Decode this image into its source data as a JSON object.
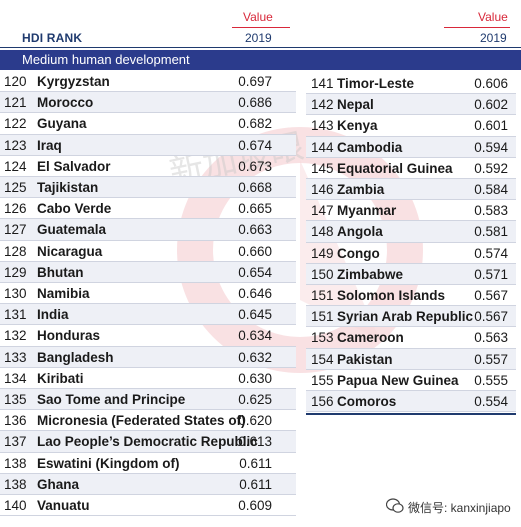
{
  "header": {
    "hdi_rank_label": "HDI RANK",
    "left_value_label": "Value",
    "left_year": "2019",
    "right_value_label": "Value",
    "right_year": "2019"
  },
  "section_title": "Medium human development",
  "left_rows": [
    {
      "rank": "120",
      "name": "Kyrgyzstan",
      "value": "0.697"
    },
    {
      "rank": "121",
      "name": "Morocco",
      "value": "0.686"
    },
    {
      "rank": "122",
      "name": "Guyana",
      "value": "0.682"
    },
    {
      "rank": "123",
      "name": "Iraq",
      "value": "0.674"
    },
    {
      "rank": "124",
      "name": "El Salvador",
      "value": "0.673"
    },
    {
      "rank": "125",
      "name": "Tajikistan",
      "value": "0.668"
    },
    {
      "rank": "126",
      "name": "Cabo Verde",
      "value": "0.665"
    },
    {
      "rank": "127",
      "name": "Guatemala",
      "value": "0.663"
    },
    {
      "rank": "128",
      "name": "Nicaragua",
      "value": "0.660"
    },
    {
      "rank": "129",
      "name": "Bhutan",
      "value": "0.654"
    },
    {
      "rank": "130",
      "name": "Namibia",
      "value": "0.646"
    },
    {
      "rank": "131",
      "name": "India",
      "value": "0.645"
    },
    {
      "rank": "132",
      "name": "Honduras",
      "value": "0.634"
    },
    {
      "rank": "133",
      "name": "Bangladesh",
      "value": "0.632"
    },
    {
      "rank": "134",
      "name": "Kiribati",
      "value": "0.630"
    },
    {
      "rank": "135",
      "name": "Sao Tome and Principe",
      "value": "0.625"
    },
    {
      "rank": "136",
      "name": "Micronesia (Federated States of)",
      "value": "0.620"
    },
    {
      "rank": "137",
      "name": "Lao People’s Democratic Republic",
      "value": "0.613"
    },
    {
      "rank": "138",
      "name": "Eswatini (Kingdom of)",
      "value": "0.611"
    },
    {
      "rank": "138",
      "name": "Ghana",
      "value": "0.611"
    },
    {
      "rank": "140",
      "name": "Vanuatu",
      "value": "0.609"
    }
  ],
  "right_rows": [
    {
      "rank": "141",
      "name": "Timor-Leste",
      "value": "0.606"
    },
    {
      "rank": "142",
      "name": "Nepal",
      "value": "0.602"
    },
    {
      "rank": "143",
      "name": "Kenya",
      "value": "0.601"
    },
    {
      "rank": "144",
      "name": "Cambodia",
      "value": "0.594"
    },
    {
      "rank": "145",
      "name": "Equatorial Guinea",
      "value": "0.592"
    },
    {
      "rank": "146",
      "name": "Zambia",
      "value": "0.584"
    },
    {
      "rank": "147",
      "name": "Myanmar",
      "value": "0.583"
    },
    {
      "rank": "148",
      "name": "Angola",
      "value": "0.581"
    },
    {
      "rank": "149",
      "name": "Congo",
      "value": "0.574"
    },
    {
      "rank": "150",
      "name": "Zimbabwe",
      "value": "0.571"
    },
    {
      "rank": "151",
      "name": "Solomon Islands",
      "value": "0.567"
    },
    {
      "rank": "151",
      "name": "Syrian Arab Republic",
      "value": "0.567"
    },
    {
      "rank": "153",
      "name": "Cameroon",
      "value": "0.563"
    },
    {
      "rank": "154",
      "name": "Pakistan",
      "value": "0.557"
    },
    {
      "rank": "155",
      "name": "Papua New Guinea",
      "value": "0.555"
    },
    {
      "rank": "156",
      "name": "Comoros",
      "value": "0.554"
    }
  ],
  "watermark": {
    "chinese_text": "新加坡眼",
    "account_label": "微信号: kanxinjiapo",
    "icon": "wechat-icon"
  },
  "colors": {
    "band_bg": "#2b3b8c",
    "value_red": "#d8283a",
    "navy": "#1f3a6e",
    "alt_row": "#eef0f6"
  }
}
